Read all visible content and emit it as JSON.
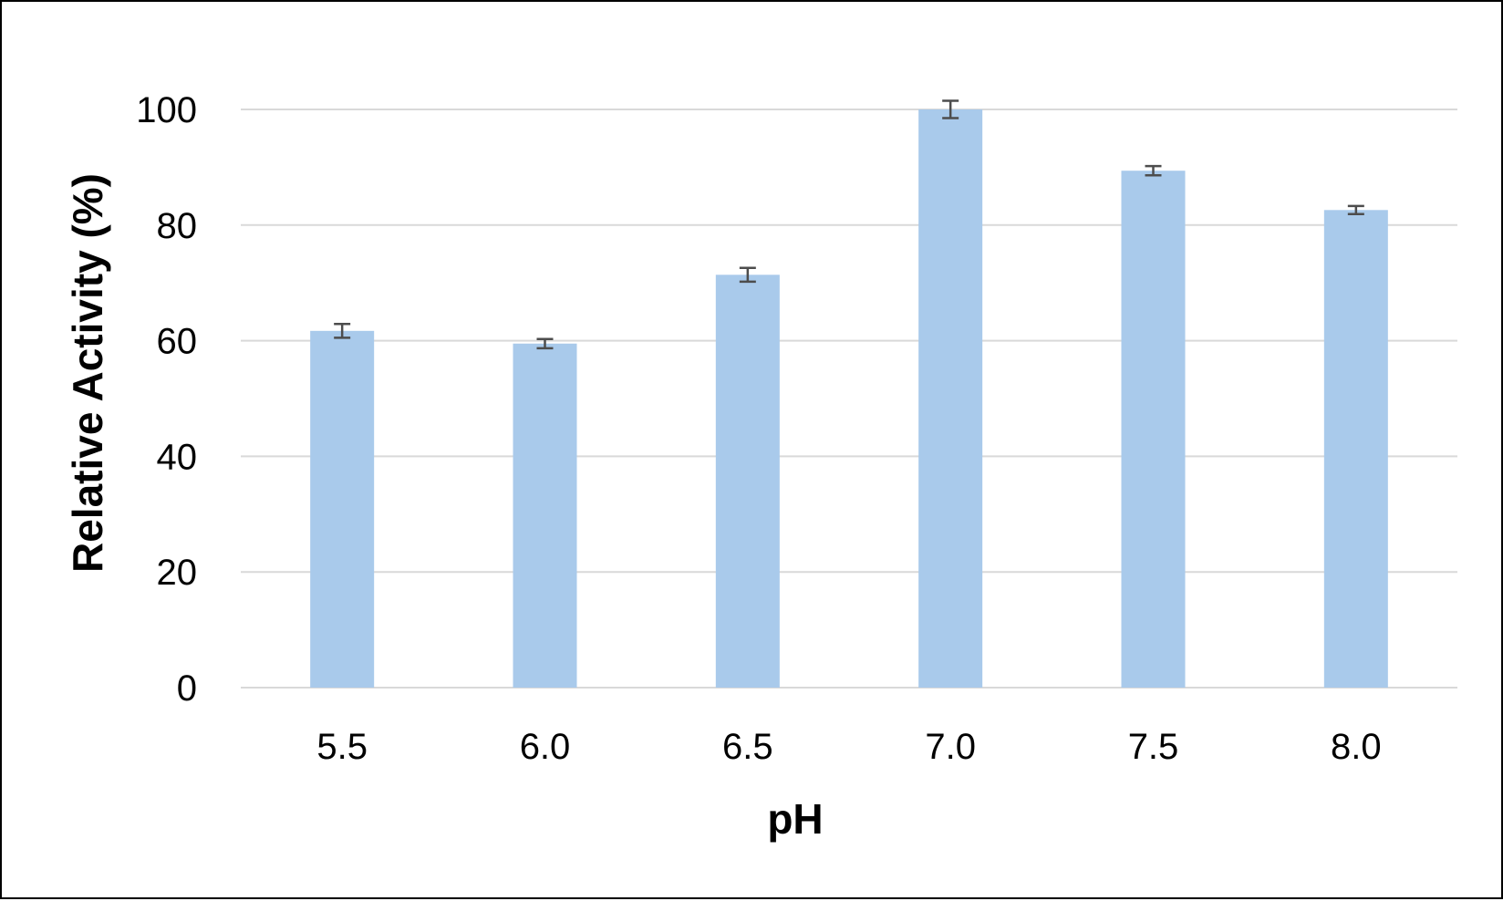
{
  "chart_data": {
    "type": "bar",
    "categories": [
      "5.5",
      "6.0",
      "6.5",
      "7.0",
      "7.5",
      "8.0"
    ],
    "values": [
      61.7,
      59.5,
      71.4,
      100,
      89.4,
      82.6
    ],
    "errors": [
      1.2,
      0.8,
      1.2,
      1.5,
      0.8,
      0.7
    ],
    "xlabel": "pH",
    "ylabel": "Relative Activity (%)",
    "ylim": [
      0,
      100
    ],
    "yticks": [
      "0",
      "20",
      "40",
      "60",
      "80",
      "100"
    ],
    "grid": true,
    "colors": {
      "bar": "#a9caeb",
      "grid": "#d9d9d9",
      "error_bar": "#4d4d4d"
    }
  }
}
